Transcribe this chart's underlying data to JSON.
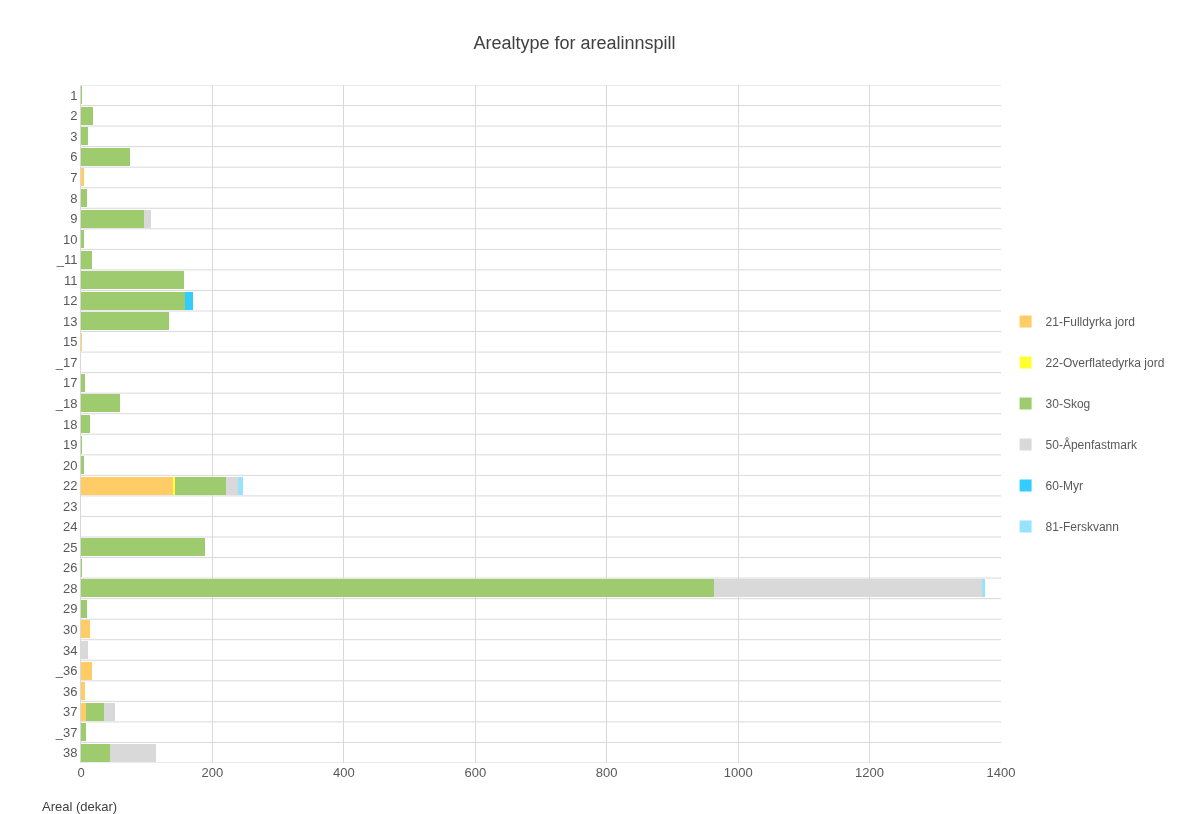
{
  "chart_data": {
    "type": "bar",
    "orientation": "horizontal",
    "stacked": true,
    "title": "Arealtype for arealinnspill",
    "xlabel": "Areal (dekar)",
    "categories": [
      "1",
      "2",
      "3",
      "6",
      "7",
      "8",
      "9",
      "10",
      "_11",
      "11",
      "12",
      "13",
      "15",
      "_17",
      "17",
      "_18",
      "18",
      "19",
      "20",
      "22",
      "23",
      "24",
      "25",
      "26",
      "28",
      "29",
      "30",
      "34",
      "_36",
      "36",
      "37",
      "_37",
      "38"
    ],
    "series": [
      {
        "name": "21-Fulldyrka jord",
        "color": "#ffcc66",
        "values": [
          null,
          null,
          null,
          null,
          4,
          null,
          null,
          null,
          null,
          null,
          null,
          null,
          2,
          null,
          null,
          null,
          null,
          null,
          null,
          140,
          null,
          null,
          null,
          null,
          null,
          null,
          13,
          null,
          16,
          6,
          7,
          null,
          null
        ]
      },
      {
        "name": "22-Overflatedyrka jord",
        "color": "#ffff33",
        "values": [
          null,
          null,
          null,
          null,
          null,
          null,
          null,
          null,
          null,
          null,
          null,
          null,
          null,
          null,
          null,
          null,
          null,
          null,
          null,
          3,
          null,
          null,
          null,
          null,
          null,
          null,
          null,
          null,
          null,
          null,
          null,
          null,
          null
        ]
      },
      {
        "name": "30-Skog",
        "color": "#9dcb6e",
        "values": [
          2,
          19,
          10,
          74,
          null,
          9,
          96,
          5,
          16,
          156,
          158,
          134,
          null,
          null,
          6,
          60,
          13,
          2,
          5,
          78,
          null,
          null,
          188,
          2,
          963,
          9,
          null,
          null,
          null,
          null,
          28,
          7,
          44
        ]
      },
      {
        "name": "50-Åpenfastmark",
        "color": "#d9d9d9",
        "values": [
          null,
          null,
          null,
          null,
          null,
          null,
          11,
          null,
          null,
          null,
          null,
          null,
          null,
          null,
          null,
          null,
          null,
          null,
          null,
          18,
          null,
          null,
          null,
          null,
          408,
          null,
          null,
          11,
          null,
          null,
          16,
          null,
          70
        ]
      },
      {
        "name": "60-Myr",
        "color": "#33ccff",
        "values": [
          null,
          null,
          null,
          null,
          null,
          null,
          null,
          null,
          null,
          null,
          12,
          null,
          null,
          null,
          null,
          null,
          null,
          null,
          null,
          null,
          null,
          null,
          null,
          null,
          null,
          null,
          null,
          null,
          null,
          null,
          null,
          null,
          null
        ]
      },
      {
        "name": "81-Ferskvann",
        "color": "#99e2ff",
        "values": [
          null,
          null,
          null,
          null,
          null,
          null,
          null,
          null,
          null,
          null,
          null,
          null,
          null,
          null,
          null,
          null,
          null,
          null,
          null,
          8,
          null,
          null,
          null,
          null,
          5,
          null,
          null,
          null,
          null,
          null,
          null,
          null,
          null
        ]
      }
    ],
    "xlim": [
      0,
      1400
    ],
    "xticks": [
      0,
      200,
      400,
      600,
      800,
      1000,
      1200,
      1400
    ],
    "grid": true,
    "legend": "right"
  }
}
